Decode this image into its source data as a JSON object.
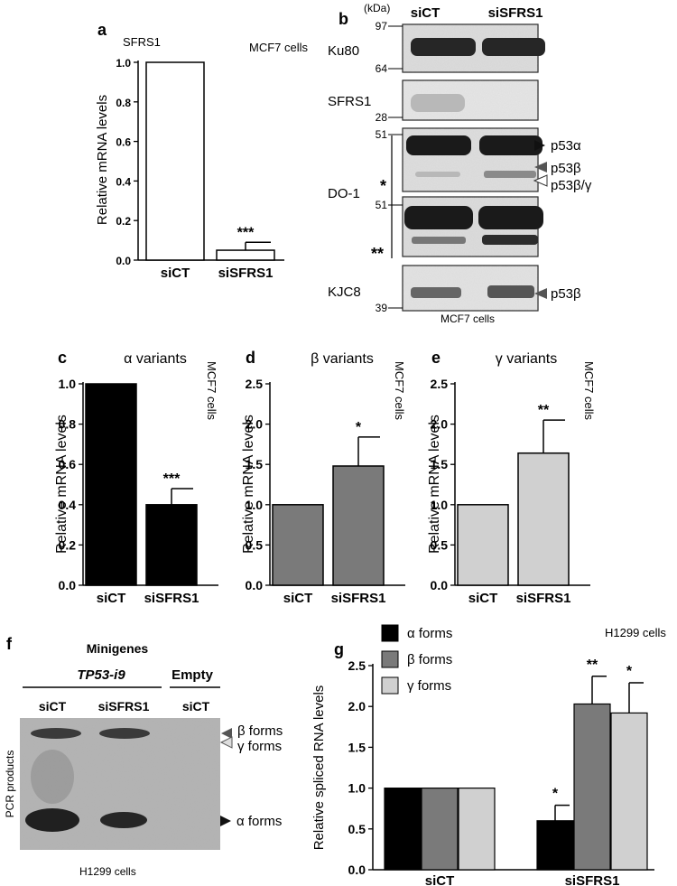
{
  "labels": {
    "a": "a",
    "b": "b",
    "c": "c",
    "d": "d",
    "e": "e",
    "f": "f",
    "g": "g"
  },
  "colors": {
    "black": "#000000",
    "dark_grey": "#7a7a7a",
    "light_grey": "#d0d0d0",
    "white": "#ffffff"
  },
  "chart_data": [
    {
      "id": "a",
      "type": "bar",
      "title": "SFRS1",
      "note": "MCF7 cells",
      "ylabel": "Relative mRNA levels",
      "ylim": [
        0,
        1.0
      ],
      "yticks": [
        "0.0",
        "0.2",
        "0.4",
        "0.6",
        "0.8",
        "1.0"
      ],
      "categories": [
        "siCT",
        "siSFRS1"
      ],
      "values": [
        1.0,
        0.05
      ],
      "errors": [
        0,
        0.04
      ],
      "significance": [
        "",
        "***"
      ],
      "colors": [
        "#ffffff",
        "#ffffff"
      ]
    },
    {
      "id": "c",
      "type": "bar",
      "title": "α variants",
      "note": "MCF7 cells",
      "ylabel": "Relative mRNA levels",
      "ylim": [
        0,
        1.0
      ],
      "yticks": [
        "0.0",
        "0.2",
        "0.4",
        "0.6",
        "0.8",
        "1.0"
      ],
      "categories": [
        "siCT",
        "siSFRS1"
      ],
      "values": [
        1.0,
        0.4
      ],
      "errors": [
        0,
        0.08
      ],
      "significance": [
        "",
        "***"
      ],
      "colors": [
        "#000000",
        "#000000"
      ]
    },
    {
      "id": "d",
      "type": "bar",
      "title": "β variants",
      "note": "MCF7 cells",
      "ylabel": "Relative mRNA levels",
      "ylim": [
        0,
        2.5
      ],
      "yticks": [
        "0.0",
        "0.5",
        "1.0",
        "1.5",
        "2.0",
        "2.5"
      ],
      "categories": [
        "siCT",
        "siSFRS1"
      ],
      "values": [
        1.0,
        1.48
      ],
      "errors": [
        0,
        0.36
      ],
      "significance": [
        "",
        "*"
      ],
      "colors": [
        "#7a7a7a",
        "#7a7a7a"
      ]
    },
    {
      "id": "e",
      "type": "bar",
      "title": "γ variants",
      "note": "MCF7 cells",
      "ylabel": "Relative mRNA levels",
      "ylim": [
        0,
        2.5
      ],
      "yticks": [
        "0.0",
        "0.5",
        "1.0",
        "1.5",
        "2.0",
        "2.5"
      ],
      "categories": [
        "siCT",
        "siSFRS1"
      ],
      "values": [
        1.0,
        1.64
      ],
      "errors": [
        0,
        0.41
      ],
      "significance": [
        "",
        "**"
      ],
      "colors": [
        "#d0d0d0",
        "#d0d0d0"
      ]
    },
    {
      "id": "g",
      "type": "bar",
      "note": "H1299 cells",
      "ylabel": "Relative spliced RNA levels",
      "ylim": [
        0,
        2.5
      ],
      "yticks": [
        "0.0",
        "0.5",
        "1.0",
        "1.5",
        "2.0",
        "2.5"
      ],
      "categories": [
        "siCT",
        "siSFRS1"
      ],
      "series": [
        {
          "name": "α forms",
          "color": "#000000",
          "values": [
            1.0,
            0.6
          ],
          "errors": [
            0,
            0.19
          ],
          "significance": [
            "",
            "*"
          ]
        },
        {
          "name": "β forms",
          "color": "#7a7a7a",
          "values": [
            1.0,
            2.03
          ],
          "errors": [
            0,
            0.34
          ],
          "significance": [
            "",
            "**"
          ]
        },
        {
          "name": "γ forms",
          "color": "#d0d0d0",
          "values": [
            1.0,
            1.92
          ],
          "errors": [
            0,
            0.37
          ],
          "significance": [
            "",
            "*"
          ]
        }
      ],
      "legend": "top-left"
    }
  ],
  "blot": {
    "unit": "(kDa)",
    "lanes": [
      "siCT",
      "siSFRS1"
    ],
    "markers": [
      "97",
      "64",
      "28",
      "51",
      "51",
      "39"
    ],
    "antibodies": [
      "Ku80",
      "SFRS1",
      "DO-1",
      "KJC8"
    ],
    "bands": [
      "p53α",
      "p53β",
      "p53β/γ",
      "p53β"
    ],
    "stars": [
      "*",
      "**"
    ],
    "caption": "MCF7 cells"
  },
  "gel": {
    "title": "Minigenes",
    "construct": "TP53-i9",
    "empty": "Empty",
    "lanes": [
      "siCT",
      "siSFRS1",
      "siCT"
    ],
    "ylabel": "PCR products",
    "bands": [
      "β forms",
      "γ forms",
      "α forms"
    ],
    "caption": "H1299 cells"
  }
}
